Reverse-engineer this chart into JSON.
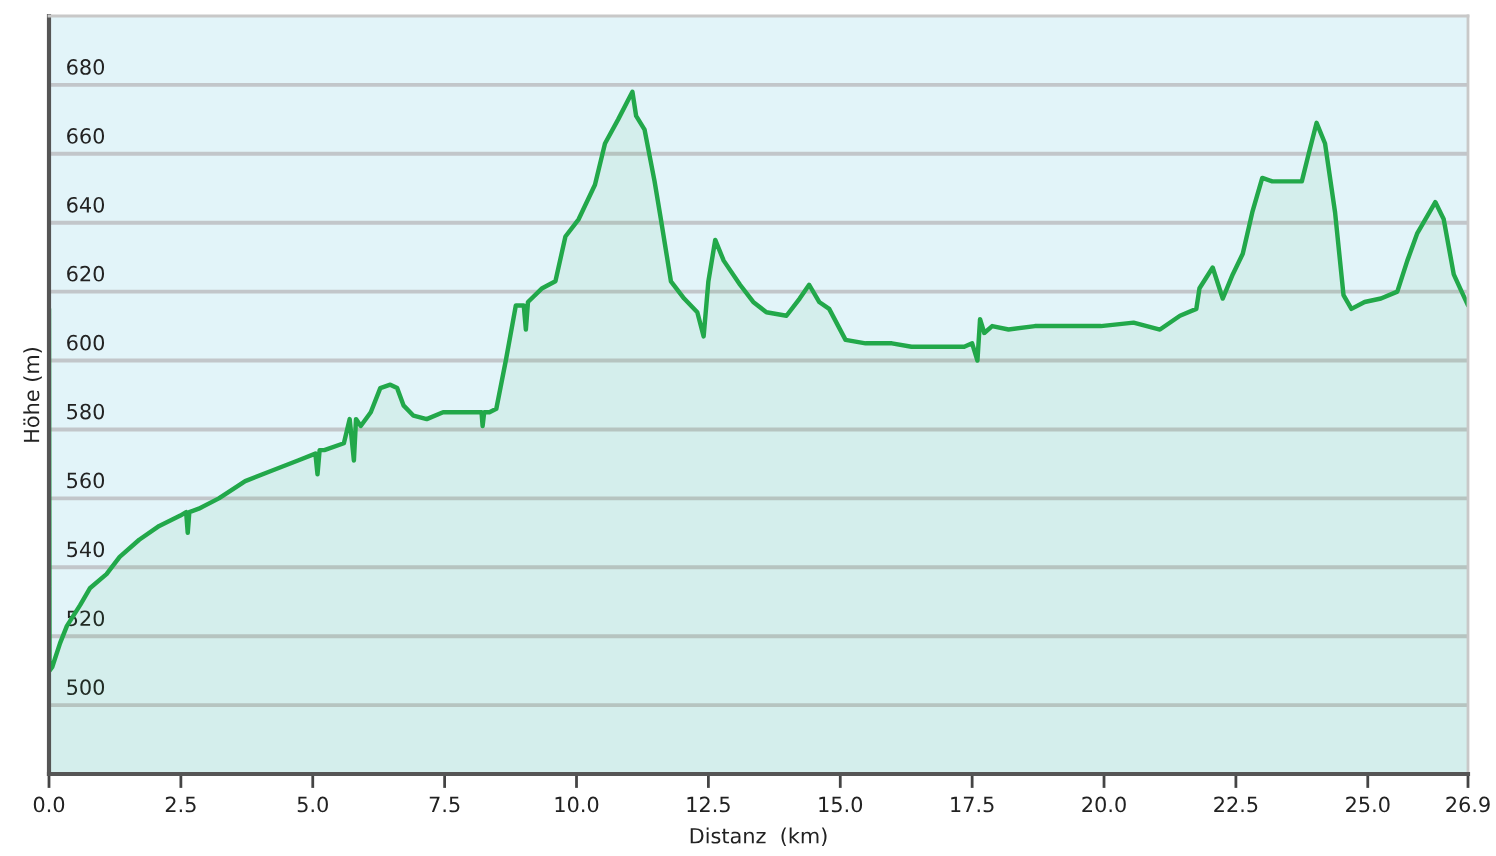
{
  "chart_data": {
    "type": "area",
    "xlabel": "Distanz  (km)",
    "ylabel": "Höhe (m)",
    "xlim": [
      0,
      26.9
    ],
    "ylim": [
      480,
      700
    ],
    "xticks": [
      {
        "value": 0,
        "label": "0.0"
      },
      2.5,
      {
        "value": 5,
        "label": "5.0"
      },
      7.5,
      {
        "value": 10,
        "label": "10.0"
      },
      12.5,
      {
        "value": 15,
        "label": "15.0"
      },
      17.5,
      {
        "value": 20,
        "label": "20.0"
      },
      22.5,
      {
        "value": 25,
        "label": "25.0"
      },
      26.9
    ],
    "yticks": [
      500,
      520,
      540,
      560,
      580,
      600,
      620,
      640,
      660,
      680
    ],
    "grid": "y",
    "series": [
      {
        "color": "#22a84a",
        "x": [
          0,
          0.01,
          0.06,
          0.21,
          0.34,
          0.59,
          0.78,
          1.09,
          1.34,
          1.71,
          2.09,
          2.49,
          2.6,
          2.63,
          2.66,
          2.84,
          3.22,
          3.72,
          4.22,
          4.72,
          5.05,
          5.09,
          5.13,
          5.22,
          5.59,
          5.7,
          5.78,
          5.82,
          5.91,
          6.1,
          6.28,
          6.47,
          6.6,
          6.72,
          6.91,
          7.16,
          7.47,
          7.85,
          8.2,
          8.22,
          8.25,
          8.35,
          8.48,
          8.66,
          8.85,
          9.0,
          9.04,
          9.08,
          9.35,
          9.6,
          9.79,
          10.04,
          10.35,
          10.54,
          10.79,
          11.06,
          11.13,
          11.29,
          11.48,
          11.6,
          11.79,
          12.04,
          12.29,
          12.41,
          12.5,
          12.63,
          12.79,
          13.1,
          13.35,
          13.6,
          13.98,
          14.23,
          14.41,
          14.6,
          14.79,
          15.1,
          15.48,
          15.98,
          16.35,
          16.85,
          17.35,
          17.5,
          17.6,
          17.65,
          17.73,
          17.88,
          18.19,
          18.69,
          19.31,
          19.94,
          20.56,
          21.06,
          21.44,
          21.75,
          21.81,
          22.06,
          22.25,
          22.44,
          22.63,
          22.81,
          23.0,
          23.19,
          23.56,
          23.75,
          23.88,
          24.03,
          24.19,
          24.38,
          24.54,
          24.69,
          24.94,
          25.25,
          25.56,
          25.75,
          25.94,
          26.13,
          26.28,
          26.44,
          26.63,
          26.81,
          26.9
        ],
        "values": [
          615,
          510,
          511,
          518,
          523,
          529,
          534,
          538,
          543,
          548,
          552,
          555,
          556,
          550,
          556,
          557,
          560,
          565,
          568,
          571,
          573,
          567,
          574,
          574,
          576,
          583,
          571,
          583,
          581,
          585,
          592,
          593,
          592,
          587,
          584,
          583,
          585,
          585,
          585,
          581,
          585,
          585,
          586,
          600,
          616,
          616,
          609,
          617,
          621,
          623,
          636,
          641,
          651,
          663,
          670,
          678,
          671,
          667,
          652,
          641,
          623,
          618,
          614,
          607,
          623,
          635,
          629,
          622,
          617,
          614,
          613,
          618,
          622,
          617,
          615,
          606,
          605,
          605,
          604,
          604,
          604,
          605,
          600,
          612,
          608,
          610,
          609,
          610,
          610,
          610,
          611,
          609,
          613,
          615,
          621,
          627,
          618,
          625,
          631,
          643,
          653,
          652,
          652,
          652,
          660,
          669,
          663,
          643,
          619,
          615,
          617,
          618,
          620,
          629,
          637,
          642,
          646,
          641,
          625,
          619,
          616
        ]
      }
    ]
  }
}
